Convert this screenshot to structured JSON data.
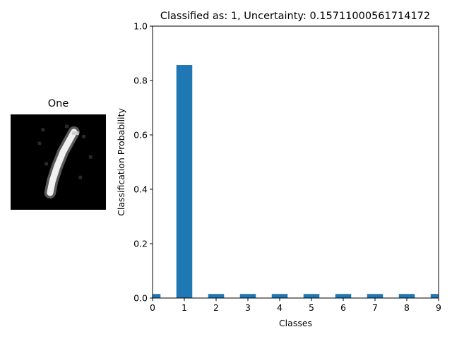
{
  "image_panel": {
    "title": "One"
  },
  "chart_data": {
    "type": "bar",
    "title": "Classified as: 1, Uncertainty: 0.15711000561714172",
    "xlabel": "Classes",
    "ylabel": "Classification Probability",
    "categories": [
      "0",
      "1",
      "2",
      "3",
      "4",
      "5",
      "6",
      "7",
      "8",
      "9"
    ],
    "values": [
      0.015,
      0.857,
      0.015,
      0.015,
      0.015,
      0.015,
      0.015,
      0.015,
      0.015,
      0.015
    ],
    "xlim": [
      0,
      9
    ],
    "ylim": [
      0,
      1.0
    ],
    "yticks": [
      "0.0",
      "0.2",
      "0.4",
      "0.6",
      "0.8",
      "1.0"
    ],
    "grid": false,
    "bar_color": "#1f77b4"
  }
}
